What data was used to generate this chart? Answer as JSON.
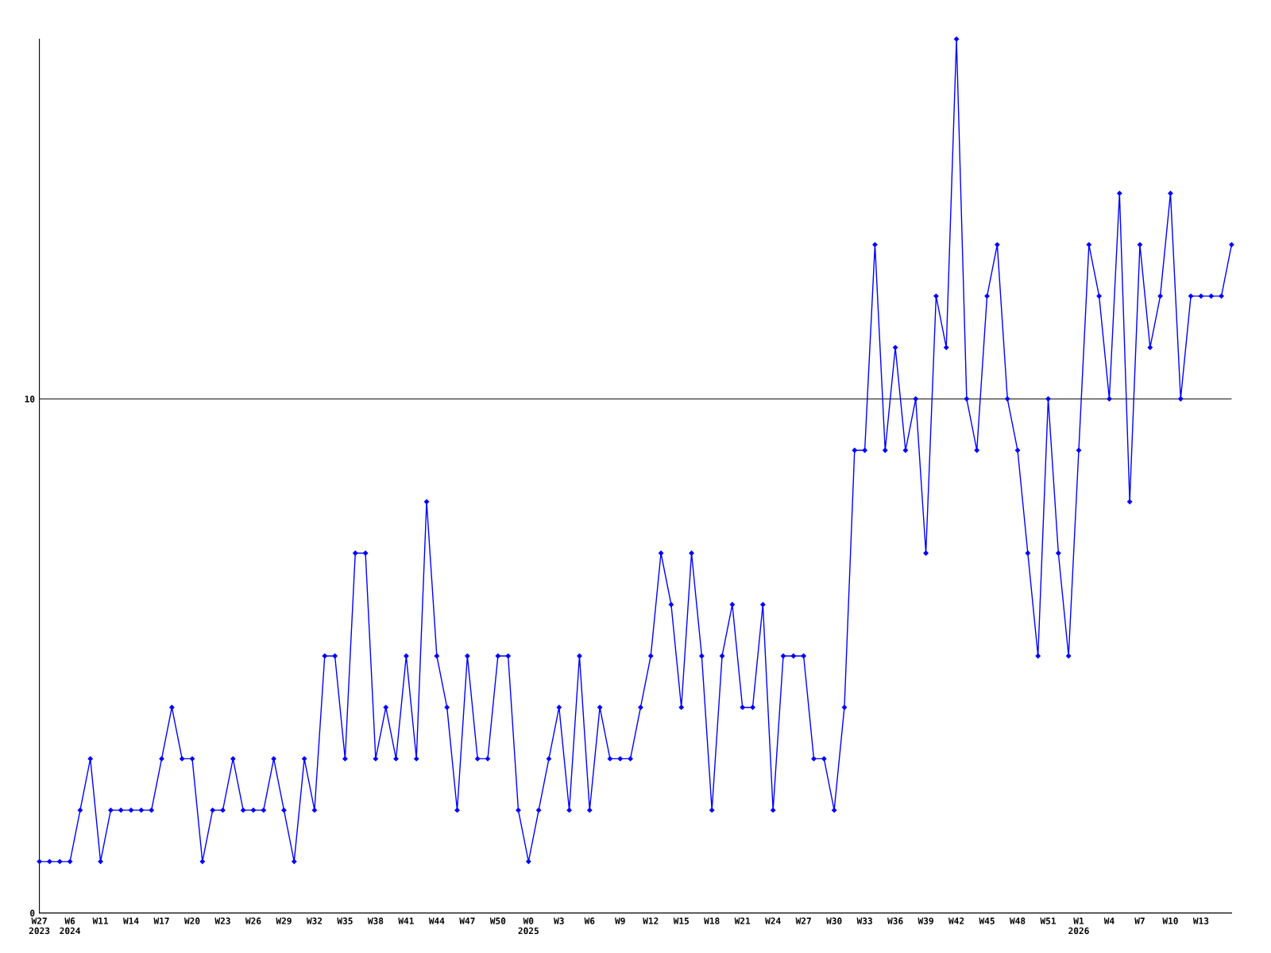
{
  "chart_data": {
    "type": "line",
    "categories": [
      "W27\n2023",
      null,
      null,
      "W6\n2024",
      null,
      null,
      "W11",
      null,
      null,
      "W14",
      null,
      null,
      "W17",
      null,
      null,
      "W20",
      null,
      null,
      "W23",
      null,
      null,
      "W26",
      null,
      null,
      "W29",
      null,
      null,
      "W32",
      null,
      null,
      "W35",
      null,
      null,
      "W38",
      null,
      null,
      "W41",
      null,
      null,
      "W44",
      null,
      null,
      "W47",
      null,
      null,
      "W50",
      null,
      null,
      "W0\n2025",
      null,
      null,
      "W3",
      null,
      null,
      "W6",
      null,
      null,
      "W9",
      null,
      null,
      "W12",
      null,
      null,
      "W15",
      null,
      null,
      "W18",
      null,
      null,
      "W21",
      null,
      null,
      "W24",
      null,
      null,
      "W27",
      null,
      null,
      "W30",
      null,
      null,
      "W33",
      null,
      null,
      "W36",
      null,
      null,
      "W39",
      null,
      null,
      "W42",
      null,
      null,
      "W45",
      null,
      null,
      "W48",
      null,
      null,
      "W51",
      null,
      null,
      "W1\n2026",
      null,
      null,
      "W4",
      null,
      null,
      "W7",
      null,
      null,
      "W10",
      null,
      null,
      "W13",
      null,
      null,
      null
    ],
    "series": [
      {
        "color": "#0000ff",
        "values": [
          1,
          1,
          1,
          1,
          2,
          3,
          1,
          2,
          2,
          2,
          2,
          2,
          3,
          4,
          3,
          3,
          1,
          2,
          2,
          3,
          2,
          2,
          2,
          3,
          2,
          1,
          3,
          2,
          5,
          5,
          3,
          7,
          7,
          3,
          4,
          3,
          5,
          3,
          8,
          5,
          4,
          2,
          5,
          3,
          3,
          5,
          5,
          2,
          1,
          2,
          3,
          4,
          2,
          5,
          2,
          4,
          3,
          3,
          3,
          4,
          5,
          7,
          6,
          4,
          7,
          5,
          2,
          5,
          6,
          4,
          4,
          6,
          2,
          5,
          5,
          5,
          3,
          3,
          2,
          4,
          9,
          9,
          13,
          9,
          11,
          9,
          10,
          7,
          12,
          11,
          17,
          10,
          9,
          12,
          13,
          10,
          9,
          7,
          5,
          10,
          7,
          5,
          9,
          13,
          12,
          10,
          14,
          8,
          13,
          11,
          12,
          14,
          10,
          12,
          12,
          12,
          12,
          13
        ]
      }
    ],
    "ylim": [
      0,
      17
    ],
    "yticks": [
      0,
      10
    ],
    "grid": "y",
    "marker": "diamond",
    "line_style": "solid"
  }
}
